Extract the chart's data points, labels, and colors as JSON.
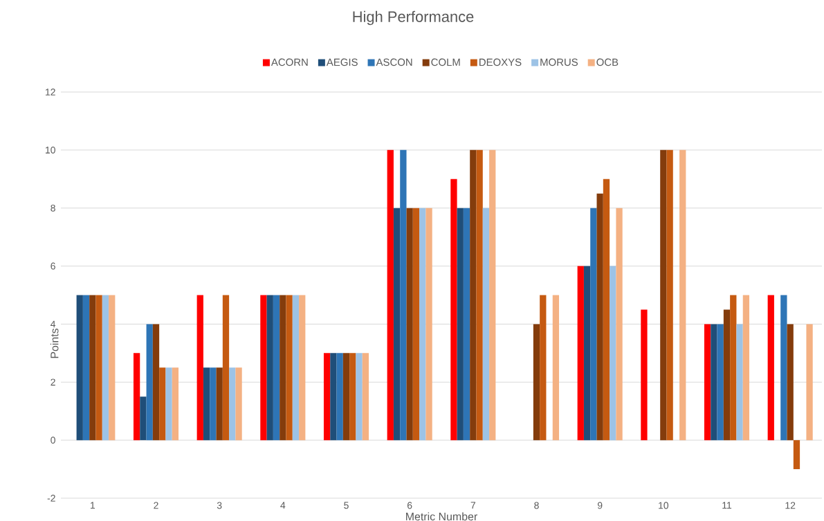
{
  "chart_data": {
    "type": "bar",
    "title": "High Performance",
    "xlabel": "Metric Number",
    "ylabel": "Points",
    "categories": [
      "1",
      "2",
      "3",
      "4",
      "5",
      "6",
      "7",
      "8",
      "9",
      "10",
      "11",
      "12"
    ],
    "series": [
      {
        "name": "ACORN",
        "color": "#ff0000",
        "values": [
          null,
          3,
          5,
          5,
          3,
          10,
          9,
          null,
          6,
          4.5,
          4,
          5
        ]
      },
      {
        "name": "AEGIS",
        "color": "#1f4e79",
        "values": [
          5,
          1.5,
          2.5,
          5,
          3,
          8,
          8,
          null,
          6,
          null,
          4,
          null
        ]
      },
      {
        "name": "ASCON",
        "color": "#2e75b6",
        "values": [
          5,
          4,
          2.5,
          5,
          3,
          10,
          8,
          null,
          8,
          null,
          4,
          5
        ]
      },
      {
        "name": "COLM",
        "color": "#843c0c",
        "values": [
          5,
          4,
          2.5,
          5,
          3,
          8,
          10,
          4,
          8.5,
          10,
          4.5,
          4
        ]
      },
      {
        "name": "DEOXYS",
        "color": "#c55a11",
        "values": [
          5,
          2.5,
          5,
          5,
          3,
          8,
          10,
          5,
          9,
          10,
          5,
          -1
        ]
      },
      {
        "name": "MORUS",
        "color": "#9dc3e6",
        "values": [
          5,
          2.5,
          2.5,
          5,
          3,
          8,
          8,
          null,
          6,
          null,
          4,
          null
        ]
      },
      {
        "name": "OCB",
        "color": "#f4b183",
        "values": [
          5,
          2.5,
          2.5,
          5,
          3,
          8,
          10,
          5,
          8,
          10,
          5,
          4
        ]
      }
    ],
    "ylim": [
      -2,
      12
    ],
    "yticks": [
      -2,
      0,
      2,
      4,
      6,
      8,
      10,
      12
    ],
    "grid": "y",
    "legend": "top"
  }
}
